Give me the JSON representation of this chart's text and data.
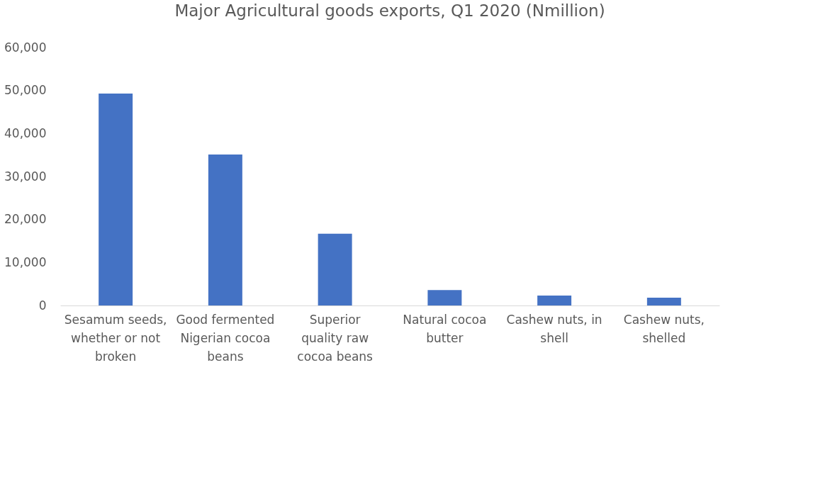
{
  "chart_data": {
    "type": "bar",
    "title": "Major Agricultural goods exports, Q1 2020 (Nmillion)",
    "categories": [
      "Sesamum seeds, whether or not broken",
      "Good fermented Nigerian cocoa beans",
      "Superior quality raw cocoa beans",
      "Natural cocoa butter",
      "Cashew nuts, in shell",
      "Cashew nuts, shelled"
    ],
    "values": [
      49300,
      35100,
      16700,
      3600,
      2300,
      1800
    ],
    "color": "#4472c4",
    "ylim": [
      0,
      60000
    ],
    "yticks": [
      0,
      {
        "value": 10000,
        "label": "10,000"
      },
      {
        "value": 20000,
        "label": "20,000"
      },
      {
        "value": 30000,
        "label": "30,000"
      },
      {
        "value": 40000,
        "label": "40,000"
      },
      {
        "value": 50000,
        "label": "50,000"
      },
      {
        "value": 60000,
        "label": "60,000"
      }
    ],
    "grid": false
  }
}
